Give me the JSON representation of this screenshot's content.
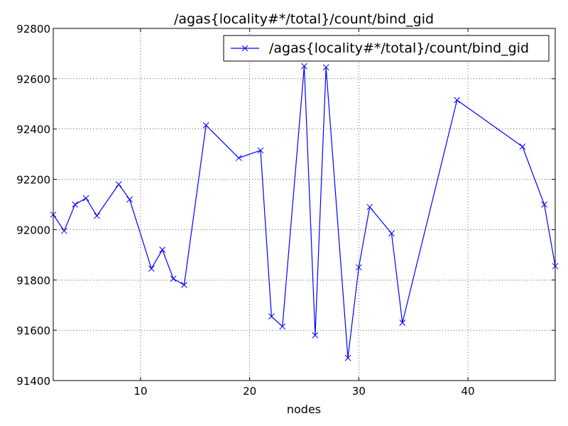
{
  "chart_data": {
    "type": "line",
    "title": "/agas{locality#*/total}/count/bind_gid",
    "xlabel": "nodes",
    "ylabel": "",
    "xlim": [
      2,
      48
    ],
    "ylim": [
      91400,
      92800
    ],
    "xticks": [
      10,
      20,
      30,
      40
    ],
    "yticks": [
      91400,
      91600,
      91800,
      92000,
      92200,
      92400,
      92600,
      92800
    ],
    "grid": true,
    "legend_position": "top-right",
    "series": [
      {
        "name": "/agas{locality#*/total}/count/bind_gid",
        "color": "#0000ff",
        "marker": "x",
        "x": [
          2,
          3,
          4,
          5,
          6,
          8,
          9,
          11,
          12,
          13,
          14,
          16,
          19,
          21,
          22,
          23,
          25,
          26,
          27,
          29,
          30,
          31,
          33,
          34,
          39,
          45,
          47,
          48
        ],
        "y": [
          92060,
          91995,
          92100,
          92125,
          92055,
          92180,
          92120,
          91845,
          91920,
          91805,
          91780,
          92415,
          92285,
          92315,
          91655,
          91615,
          92650,
          91580,
          92645,
          91490,
          91850,
          92090,
          91985,
          91630,
          92515,
          92330,
          92100,
          91855
        ]
      }
    ]
  }
}
